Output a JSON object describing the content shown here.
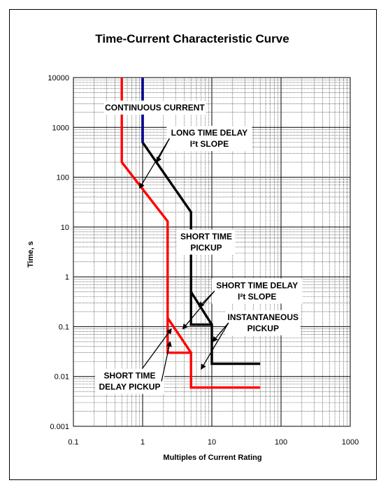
{
  "chart_data": {
    "type": "line",
    "title": "Time-Current Characteristic Curve",
    "xlabel": "Multiples of Current Rating",
    "ylabel": "Time, s",
    "x_scale": "log",
    "y_scale": "log",
    "xlim": [
      0.1,
      1000
    ],
    "ylim": [
      0.001,
      10000
    ],
    "grid": true,
    "x_ticks": [
      "0.1",
      "1",
      "10",
      "100",
      "1000"
    ],
    "y_ticks": [
      "0.001",
      "0.01",
      "0.1",
      "1",
      "10",
      "100",
      "1000",
      "10000"
    ],
    "series": [
      {
        "color": "#ff0000",
        "x": [
          0.5,
          0.5,
          2.3,
          2.3,
          5,
          5,
          50
        ],
        "y": [
          10000,
          200,
          13,
          0.03,
          0.03,
          0.006,
          0.006
        ]
      },
      {
        "color": "#000000",
        "x": [
          1,
          1,
          5,
          5,
          10,
          10,
          50
        ],
        "y": [
          10000,
          500,
          20,
          0.11,
          0.11,
          0.018,
          0.018
        ]
      },
      {
        "color": "#ff0000",
        "x": [
          2.3,
          5
        ],
        "y": [
          0.15,
          0.03
        ]
      },
      {
        "color": "#000000",
        "x": [
          5,
          10
        ],
        "y": [
          0.5,
          0.11
        ]
      },
      {
        "color": "#000099",
        "x": [
          1,
          1
        ],
        "y": [
          10000,
          500
        ]
      }
    ],
    "annotations": [
      {
        "lines": [
          "CONTINUOUS CURRENT"
        ],
        "x": 1.5,
        "y": 2500,
        "arrows": []
      },
      {
        "lines": [
          "LONG TIME DELAY",
          "I²t SLOPE"
        ],
        "x": 9.2,
        "y": 600,
        "arrows": [
          {
            "x": 1.6,
            "y": 200
          },
          {
            "x": 0.9,
            "y": 60
          }
        ]
      },
      {
        "lines": [
          "SHORT TIME",
          "PICKUP"
        ],
        "x": 8.3,
        "y": 5.0,
        "arrows": []
      },
      {
        "lines": [
          "SHORT TIME DELAY",
          "I²t SLOPE"
        ],
        "x": 45,
        "y": 0.52,
        "arrows": [
          {
            "x": 6.5,
            "y": 0.25
          },
          {
            "x": 3.8,
            "y": 0.09
          }
        ]
      },
      {
        "lines": [
          "INSTANTANEOUS",
          "PICKUP"
        ],
        "x": 55,
        "y": 0.12,
        "arrows": [
          {
            "x": 10.3,
            "y": 0.05
          },
          {
            "x": 7.0,
            "y": 0.014
          }
        ]
      },
      {
        "lines": [
          "SHORT TIME",
          "DELAY PICKUP"
        ],
        "x": 0.65,
        "y": 0.008,
        "arrows": [
          {
            "x": 2.5,
            "y": 0.05
          },
          {
            "x": 2.6,
            "y": 0.09
          }
        ]
      }
    ]
  }
}
